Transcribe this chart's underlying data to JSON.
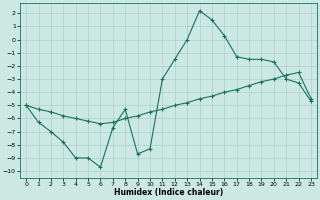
{
  "xlabel": "Humidex (Indice chaleur)",
  "background_color": "#cce8e2",
  "grid_color": "#aad0c8",
  "line_color": "#1a7060",
  "xlim": [
    -0.5,
    23.5
  ],
  "ylim": [
    -10.5,
    2.8
  ],
  "xticks": [
    0,
    1,
    2,
    3,
    4,
    5,
    6,
    7,
    8,
    9,
    10,
    11,
    12,
    13,
    14,
    15,
    16,
    17,
    18,
    19,
    20,
    21,
    22,
    23
  ],
  "yticks": [
    2,
    1,
    0,
    -1,
    -2,
    -3,
    -4,
    -5,
    -6,
    -7,
    -8,
    -9,
    -10
  ],
  "line1_x": [
    0,
    1,
    2,
    3,
    4,
    5,
    6,
    7,
    8,
    9,
    10,
    11,
    12,
    13,
    14,
    15,
    16,
    17,
    18,
    19,
    20,
    21,
    22,
    23
  ],
  "line1_y": [
    -5.0,
    -6.3,
    -7.0,
    -7.8,
    -9.0,
    -9.0,
    -9.7,
    -6.7,
    -5.3,
    -8.7,
    -8.3,
    -3.0,
    -1.5,
    0.0,
    2.2,
    1.5,
    0.3,
    -1.3,
    -1.5,
    -1.5,
    -1.7,
    -3.0,
    -3.3,
    -4.7
  ],
  "line2_x": [
    0,
    1,
    2,
    3,
    4,
    5,
    6,
    7,
    8,
    9,
    10,
    11,
    12,
    13,
    14,
    15,
    16,
    17,
    18,
    19,
    20,
    21,
    22,
    23
  ],
  "line2_y": [
    -5.0,
    -5.3,
    -5.5,
    -5.8,
    -6.0,
    -6.2,
    -6.4,
    -6.3,
    -6.0,
    -5.8,
    -5.5,
    -5.3,
    -5.0,
    -4.8,
    -4.5,
    -4.3,
    -4.0,
    -3.8,
    -3.5,
    -3.2,
    -3.0,
    -2.7,
    -2.5,
    -4.5
  ]
}
